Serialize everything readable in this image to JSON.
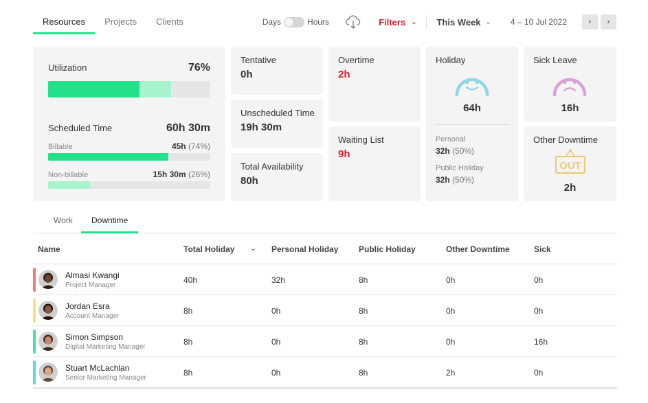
{
  "tabs": [
    "Resources",
    "Projects",
    "Clients"
  ],
  "toggle": {
    "left": "Days",
    "right": "Hours"
  },
  "filters": {
    "label": "Filters"
  },
  "week": {
    "label": "This Week",
    "range": "4 – 10 Jul 2022"
  },
  "nav": {
    "prev": "‹",
    "next": "›"
  },
  "colors": {
    "accent": "#23e08a",
    "accent_light": "#a6f5cf",
    "red": "#e3182d",
    "happy": "#92d5e3",
    "sad": "#d9a2d6",
    "out": "#e9cd7b"
  },
  "utilization": {
    "label": "Utilization",
    "value": "76%",
    "bar_fill_fraction": 0.565,
    "bar_secondary_fraction": 0.195,
    "scheduled_label": "Scheduled Time",
    "scheduled_value": "60h 30m",
    "billable_label": "Billable",
    "billable_value": "45h",
    "billable_pct": "(74%)",
    "billable_fraction": 0.74,
    "nonbillable_label": "Non-billable",
    "nonbillable_value": "15h 30m",
    "nonbillable_pct": "(26%)",
    "nonbillable_fraction": 0.26
  },
  "stats": {
    "tentative": {
      "label": "Tentative",
      "value": "0h"
    },
    "unscheduled": {
      "label": "Unscheduled Time",
      "value": "19h 30m"
    },
    "availability": {
      "label": "Total Availability",
      "value": "80h"
    },
    "overtime": {
      "label": "Overtime",
      "value": "2h"
    },
    "waiting": {
      "label": "Waiting List",
      "value": "9h"
    },
    "holiday": {
      "label": "Holiday",
      "value": "64h",
      "icon": "happy-face-icon",
      "personal_label": "Personal",
      "personal_value": "32h",
      "personal_pct": "(50%)",
      "public_label": "Public Holiday",
      "public_value": "32h",
      "public_pct": "(50%)"
    },
    "sick": {
      "label": "Sick Leave",
      "value": "16h",
      "icon": "sad-face-icon"
    },
    "other": {
      "label": "Other Downtime",
      "value": "2h",
      "icon": "out-sign-icon",
      "sign_text": "OUT"
    }
  },
  "subtabs": [
    "Work",
    "Downtime"
  ],
  "table": {
    "headers": [
      "Name",
      "Total Holiday",
      "Personal Holiday",
      "Public Holiday",
      "Other Downtime",
      "Sick"
    ],
    "rows": [
      {
        "name": "Almasi Kwangi",
        "role": "Project Manager",
        "stripe": "#f47b7b",
        "skin": "#6b4532",
        "hair": "#2b1a12",
        "cells": [
          "40h",
          "32h",
          "8h",
          "0h",
          "0h"
        ]
      },
      {
        "name": "Jordan Esra",
        "role": "Account Manager",
        "stripe": "#f5e27a",
        "skin": "#8a5a3e",
        "hair": "#1d1410",
        "cells": [
          "8h",
          "0h",
          "8h",
          "0h",
          "0h"
        ]
      },
      {
        "name": "Simon Simpson",
        "role": "Digital Marketing Manager",
        "stripe": "#49e0b0",
        "skin": "#c48a6a",
        "hair": "#3a2a20",
        "cells": [
          "8h",
          "0h",
          "8h",
          "0h",
          "16h"
        ]
      },
      {
        "name": "Stuart McLachlan",
        "role": "Senior Marketing Manager",
        "stripe": "#5cd6ee",
        "skin": "#d9a888",
        "hair": "#5a4a3c",
        "cells": [
          "8h",
          "0h",
          "8h",
          "2h",
          "0h"
        ]
      }
    ]
  }
}
